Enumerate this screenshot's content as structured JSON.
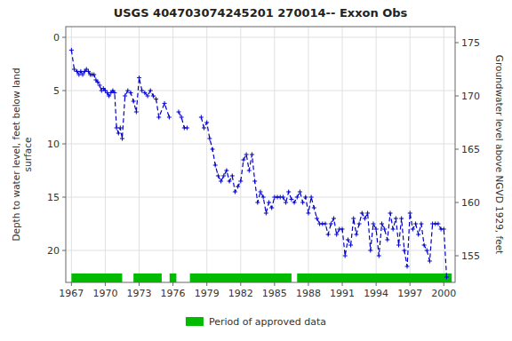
{
  "chart_data": {
    "type": "line",
    "title": "USGS 404703074245201 270014-- Exxon Obs",
    "y_label": "Depth to water level, feet below land\nsurface",
    "y2_label": "Groundwater level above NGVD 1929, feet",
    "xlim": [
      1966.5,
      2001.0
    ],
    "xticks": [
      1967,
      1970,
      1973,
      1976,
      1979,
      1982,
      1985,
      1988,
      1991,
      1994,
      1997,
      2000
    ],
    "ylim": [
      23,
      -1
    ],
    "yticks": [
      0,
      5,
      10,
      15,
      20
    ],
    "y2lim": [
      152.5,
      176.5
    ],
    "y2ticks": [
      155,
      160,
      165,
      170,
      175
    ],
    "grid": true,
    "legend": "bottom",
    "x": [
      1967.0,
      1967.25,
      1967.5,
      1967.67,
      1967.83,
      1968.0,
      1968.17,
      1968.33,
      1968.5,
      1968.67,
      1968.83,
      1969.0,
      1969.17,
      1969.33,
      1969.5,
      1969.67,
      1969.83,
      1970.0,
      1970.17,
      1970.33,
      1970.5,
      1970.67,
      1970.83,
      1971.0,
      1971.17,
      1971.33,
      1971.5,
      1971.75,
      1972.0,
      1972.25,
      1972.5,
      1972.75,
      1973.0,
      1973.25,
      1973.5,
      1973.75,
      1974.0,
      1974.25,
      1974.5,
      1974.75,
      1975.25,
      1975.67,
      null,
      1976.5,
      1976.75,
      1977.0,
      1977.25,
      null,
      1978.5,
      1978.75,
      1979.0,
      1979.25,
      1979.5,
      1979.75,
      1980.0,
      1980.25,
      1980.5,
      1980.75,
      1981.0,
      1981.25,
      1981.5,
      1981.75,
      1982.0,
      1982.25,
      1982.5,
      1982.75,
      1983.0,
      1983.25,
      1983.5,
      1983.75,
      1984.0,
      1984.25,
      1984.5,
      1984.75,
      1985.0,
      1985.25,
      1985.5,
      1985.75,
      1986.0,
      1986.25,
      1986.5,
      1986.75,
      1987.0,
      1987.25,
      1987.5,
      1987.75,
      1988.0,
      1988.25,
      1988.5,
      1988.75,
      1989.0,
      1989.25,
      1989.5,
      1989.75,
      1990.0,
      1990.25,
      1990.5,
      1990.75,
      1991.0,
      1991.25,
      1991.5,
      1991.75,
      1992.0,
      1992.25,
      1992.5,
      1992.75,
      1993.0,
      1993.25,
      1993.5,
      1993.75,
      1994.0,
      1994.25,
      1994.5,
      1994.75,
      1995.0,
      1995.25,
      1995.5,
      1995.75,
      1996.0,
      1996.25,
      1996.5,
      1996.75,
      1997.0,
      1997.25,
      1997.5,
      1997.75,
      1998.0,
      1998.25,
      1998.5,
      1998.75,
      1999.0,
      1999.25,
      1999.5,
      1999.75,
      2000.0,
      2000.25
    ],
    "series": [
      {
        "color": "#0000cc",
        "marker": "plus",
        "line_style": "dashed",
        "values": [
          1.2,
          3.0,
          3.2,
          3.5,
          3.2,
          3.5,
          3.2,
          3.0,
          3.2,
          3.5,
          3.5,
          3.5,
          4.0,
          4.2,
          4.5,
          5.0,
          4.8,
          5.0,
          5.2,
          5.5,
          5.2,
          5.0,
          5.2,
          8.5,
          9.0,
          8.5,
          9.5,
          5.5,
          5.0,
          5.2,
          6.0,
          7.0,
          3.8,
          5.0,
          5.2,
          5.5,
          5.0,
          5.5,
          5.8,
          7.5,
          6.2,
          7.5,
          null,
          7.0,
          7.5,
          8.5,
          8.5,
          null,
          7.5,
          8.5,
          8.0,
          9.5,
          10.5,
          12.0,
          13.0,
          13.5,
          13.0,
          12.5,
          13.5,
          13.0,
          14.5,
          14.0,
          13.5,
          11.5,
          11.0,
          12.5,
          11.0,
          13.5,
          15.5,
          14.5,
          15.0,
          16.5,
          15.5,
          16.0,
          15.0,
          15.0,
          15.0,
          15.0,
          15.5,
          14.5,
          15.2,
          15.5,
          15.0,
          14.5,
          15.5,
          15.0,
          16.5,
          15.0,
          16.0,
          17.0,
          17.5,
          17.5,
          17.5,
          18.5,
          17.5,
          17.0,
          18.5,
          18.0,
          18.0,
          20.5,
          19.0,
          19.5,
          17.0,
          18.5,
          17.5,
          16.5,
          17.0,
          16.5,
          20.0,
          17.5,
          18.0,
          20.5,
          17.5,
          18.0,
          19.0,
          16.5,
          18.0,
          17.0,
          19.5,
          17.0,
          20.0,
          21.5,
          16.5,
          18.0,
          17.5,
          18.5,
          17.5,
          19.5,
          20.0,
          21.0,
          17.5,
          17.5,
          17.5,
          18.0,
          18.0,
          22.5
        ]
      }
    ],
    "approved": {
      "name": "Period of approved data",
      "color": "#00bb00",
      "periods": [
        [
          1967.0,
          1971.5
        ],
        [
          1972.5,
          1975.0
        ],
        [
          1975.7,
          1976.3
        ],
        [
          1977.5,
          1986.5
        ],
        [
          1987.0,
          2000.7
        ]
      ]
    }
  }
}
